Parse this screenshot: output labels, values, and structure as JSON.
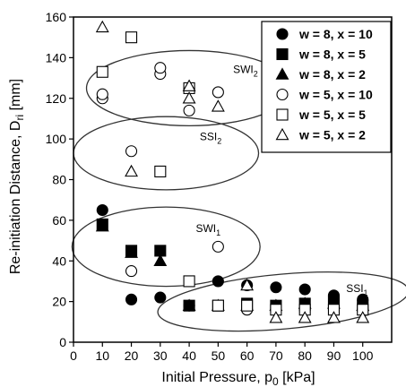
{
  "chart_data": {
    "type": "scatter",
    "title": "",
    "xlabel": "Initial Pressure, p",
    "xlabel_sub": "0",
    "xlabel_unit": " [kPa]",
    "ylabel": "Re-initiation Distance, D",
    "ylabel_sub": "ri",
    "ylabel_unit": " [mm]",
    "xlim": [
      0,
      110
    ],
    "ylim": [
      0,
      160
    ],
    "xticks": [
      0,
      10,
      20,
      30,
      40,
      50,
      60,
      70,
      80,
      90,
      100
    ],
    "yticks": [
      0,
      20,
      40,
      60,
      80,
      100,
      120,
      140,
      160
    ],
    "grid": false,
    "legend_position": "top-right",
    "series": [
      {
        "name": "w = 8, x = 10",
        "marker": "circle",
        "filled": true,
        "x": [
          10,
          20,
          30,
          40,
          50,
          60,
          70,
          80,
          90,
          100
        ],
        "y": [
          65,
          21,
          22,
          18,
          30,
          28,
          27,
          26,
          23,
          21
        ]
      },
      {
        "name": "w = 8, x = 5",
        "marker": "square",
        "filled": true,
        "x": [
          10,
          20,
          30,
          40,
          50,
          60,
          70,
          80,
          90,
          100
        ],
        "y": [
          58,
          45,
          45,
          18,
          18,
          19,
          18,
          19,
          20,
          18
        ]
      },
      {
        "name": "w = 8, x = 2",
        "marker": "triangle",
        "filled": true,
        "x": [
          10,
          20,
          30,
          40,
          50,
          60,
          70,
          80,
          90,
          100
        ],
        "y": [
          57,
          44,
          40,
          18,
          18,
          18,
          18,
          19,
          19,
          18
        ]
      },
      {
        "name": "w = 5, x = 10",
        "marker": "circle",
        "filled": false,
        "x": [
          10,
          10,
          20,
          20,
          30,
          30,
          40,
          40,
          50,
          50,
          60,
          70,
          80,
          90,
          100
        ],
        "y": [
          120,
          122,
          94,
          35,
          132,
          135,
          114,
          125,
          123,
          47,
          16,
          16,
          16,
          16,
          16
        ]
      },
      {
        "name": "w = 5, x = 5",
        "marker": "square",
        "filled": false,
        "x": [
          10,
          20,
          30,
          40,
          40,
          50,
          60,
          70,
          80,
          90,
          100
        ],
        "y": [
          133,
          150,
          84,
          125,
          30,
          18,
          18,
          16,
          16,
          16,
          16
        ]
      },
      {
        "name": "w = 5, x = 2",
        "marker": "triangle",
        "filled": false,
        "x": [
          10,
          20,
          40,
          40,
          50,
          60,
          70,
          80,
          90,
          100
        ],
        "y": [
          155,
          84,
          120,
          126,
          116,
          28,
          12,
          12,
          12,
          12
        ]
      }
    ],
    "regions": [
      {
        "label": "SWI",
        "sub": "2",
        "cx": 40,
        "cy": 125,
        "rx": 35.5,
        "ry": 18.5
      },
      {
        "label": "SSI",
        "sub": "2",
        "cx": 32,
        "cy": 93,
        "rx": 32,
        "ry": 18
      },
      {
        "label": "SWI",
        "sub": "1",
        "cx": 32,
        "cy": 47,
        "rx": 32.5,
        "ry": 19.5
      },
      {
        "label": "SSI",
        "sub": "1",
        "cx": 72.5,
        "cy": 20,
        "rx": 43.5,
        "ry": 13.5,
        "angle": -5
      }
    ]
  }
}
